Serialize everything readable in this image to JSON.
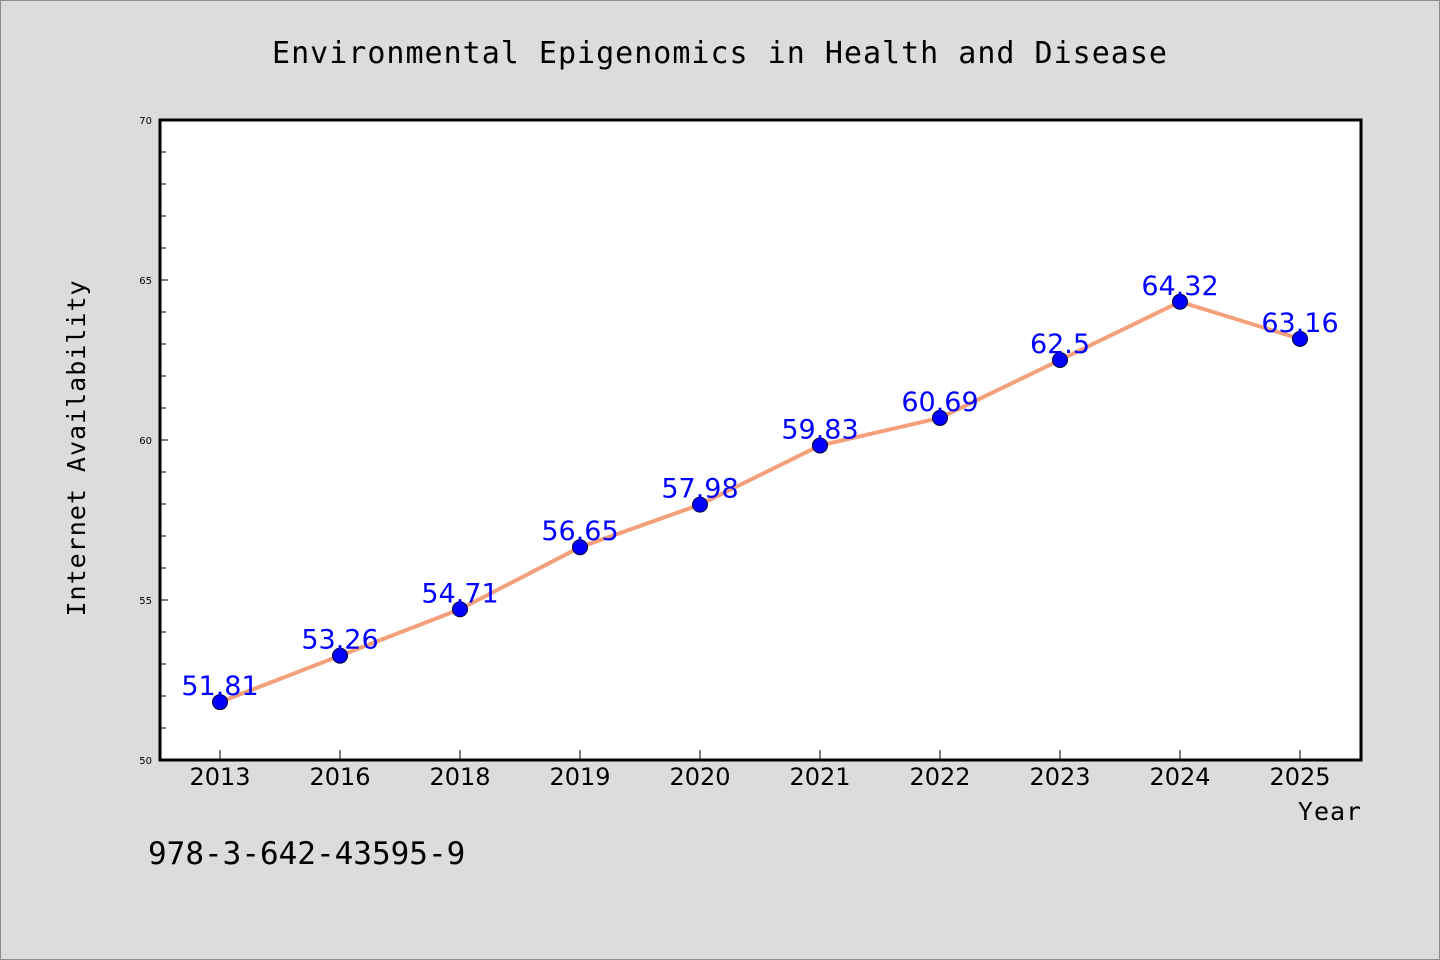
{
  "chart_data": {
    "type": "line",
    "title": "Environmental Epigenomics in Health and Disease",
    "xlabel": "Year",
    "ylabel": "Internet Availability",
    "categories": [
      "2013",
      "2016",
      "2018",
      "2019",
      "2020",
      "2021",
      "2022",
      "2023",
      "2024",
      "2025"
    ],
    "series": [
      {
        "values": [
          51.81,
          53.26,
          54.71,
          56.65,
          57.98,
          59.83,
          60.69,
          62.5,
          64.32,
          63.16
        ]
      }
    ],
    "data_labels": [
      "51.81",
      "53.26",
      "54.71",
      "56.65",
      "57.98",
      "59.83",
      "60.69",
      "62.5",
      "64.32",
      "63.16"
    ],
    "ylim": [
      50,
      70
    ],
    "y_ticks": [
      "50",
      "55",
      "60",
      "65",
      "70"
    ],
    "grid": false,
    "colors": {
      "line": "#f4a07a",
      "marker": "#0000ff",
      "data_label": "#0000ff",
      "plot_background": "#ffffff",
      "figure_background": "#dcdcdc"
    }
  },
  "footnote": "978-3-642-43595-9"
}
